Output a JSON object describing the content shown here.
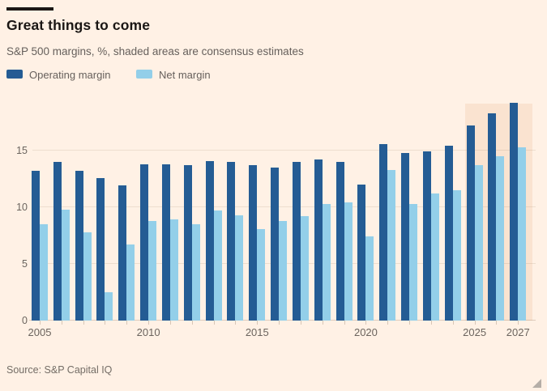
{
  "header": {
    "title": "Great things to come",
    "subtitle": "S&P 500 margins, %, shaded areas are consensus estimates"
  },
  "legend": {
    "items": [
      {
        "label": "Operating margin",
        "color": "#245C94"
      },
      {
        "label": "Net margin",
        "color": "#93CFE9"
      }
    ]
  },
  "source": "Source: S&P Capital IQ",
  "colors": {
    "background": "#FFF1E5",
    "estimate_shade": "#FAE3D0",
    "operating_margin": "#245C94",
    "net_margin": "#93CFE9",
    "title_text": "#1a1614",
    "muted_text": "#66605C"
  },
  "chart_data": {
    "type": "bar",
    "title": "Great things to come",
    "subtitle": "S&P 500 margins, %, shaded areas are consensus estimates",
    "categories": [
      2005,
      2006,
      2007,
      2008,
      2009,
      2010,
      2011,
      2012,
      2013,
      2014,
      2015,
      2016,
      2017,
      2018,
      2019,
      2020,
      2021,
      2022,
      2023,
      2024,
      2025,
      2026,
      2027
    ],
    "series": [
      {
        "name": "Operating margin",
        "color": "#245C94",
        "values": [
          13.2,
          14.0,
          13.2,
          12.6,
          11.9,
          13.8,
          13.8,
          13.7,
          14.1,
          14.0,
          13.7,
          13.5,
          14.0,
          14.2,
          14.0,
          12.0,
          15.6,
          14.8,
          14.9,
          15.4,
          17.2,
          18.3,
          19.2
        ]
      },
      {
        "name": "Net margin",
        "color": "#93CFE9",
        "values": [
          8.5,
          9.8,
          7.8,
          2.5,
          6.7,
          8.8,
          8.9,
          8.5,
          9.7,
          9.3,
          8.1,
          8.8,
          9.2,
          10.3,
          10.4,
          7.4,
          13.3,
          10.3,
          11.2,
          11.5,
          13.7,
          14.5,
          15.3
        ]
      }
    ],
    "estimate_years": [
      2025,
      2026,
      2027
    ],
    "estimate_note": "shaded areas are consensus estimates",
    "y_ticks": [
      0,
      5,
      10,
      15
    ],
    "ylim": [
      0,
      20
    ],
    "x_tick_labels": [
      "2005",
      "2010",
      "2015",
      "2020",
      "2025",
      "2027"
    ],
    "grid": "horizontal",
    "legend_position": "top",
    "ylabel": "%",
    "xlabel": ""
  }
}
